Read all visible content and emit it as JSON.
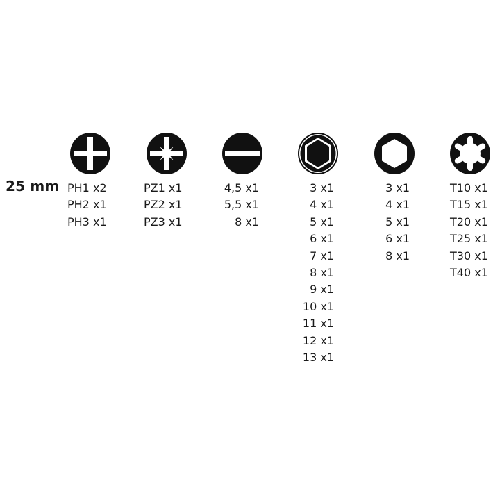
{
  "length_label": "25 mm",
  "columns": [
    {
      "icon": "phillips-icon",
      "items": [
        "PH1 x2",
        "PH2 x1",
        "PH3 x1"
      ]
    },
    {
      "icon": "pozidriv-icon",
      "items": [
        "PZ1 x1",
        "PZ2 x1",
        "PZ3 x1"
      ]
    },
    {
      "icon": "slotted-icon",
      "items": [
        "4,5 x1",
        "5,5 x1",
        "8 x1"
      ]
    },
    {
      "icon": "hex-socket-icon",
      "items": [
        "3 x1",
        "4 x1",
        "5 x1",
        "6 x1",
        "7 x1",
        "8 x1",
        "9 x1",
        "10 x1",
        "11 x1",
        "12 x1",
        "13 x1"
      ]
    },
    {
      "icon": "hex-key-icon",
      "items": [
        "3 x1",
        "4 x1",
        "5 x1",
        "6 x1",
        "8 x1"
      ]
    },
    {
      "icon": "torx-icon",
      "items": [
        "T10 x1",
        "T15 x1",
        "T20 x1",
        "T25 x1",
        "T30 x1",
        "T40 x1"
      ]
    }
  ]
}
